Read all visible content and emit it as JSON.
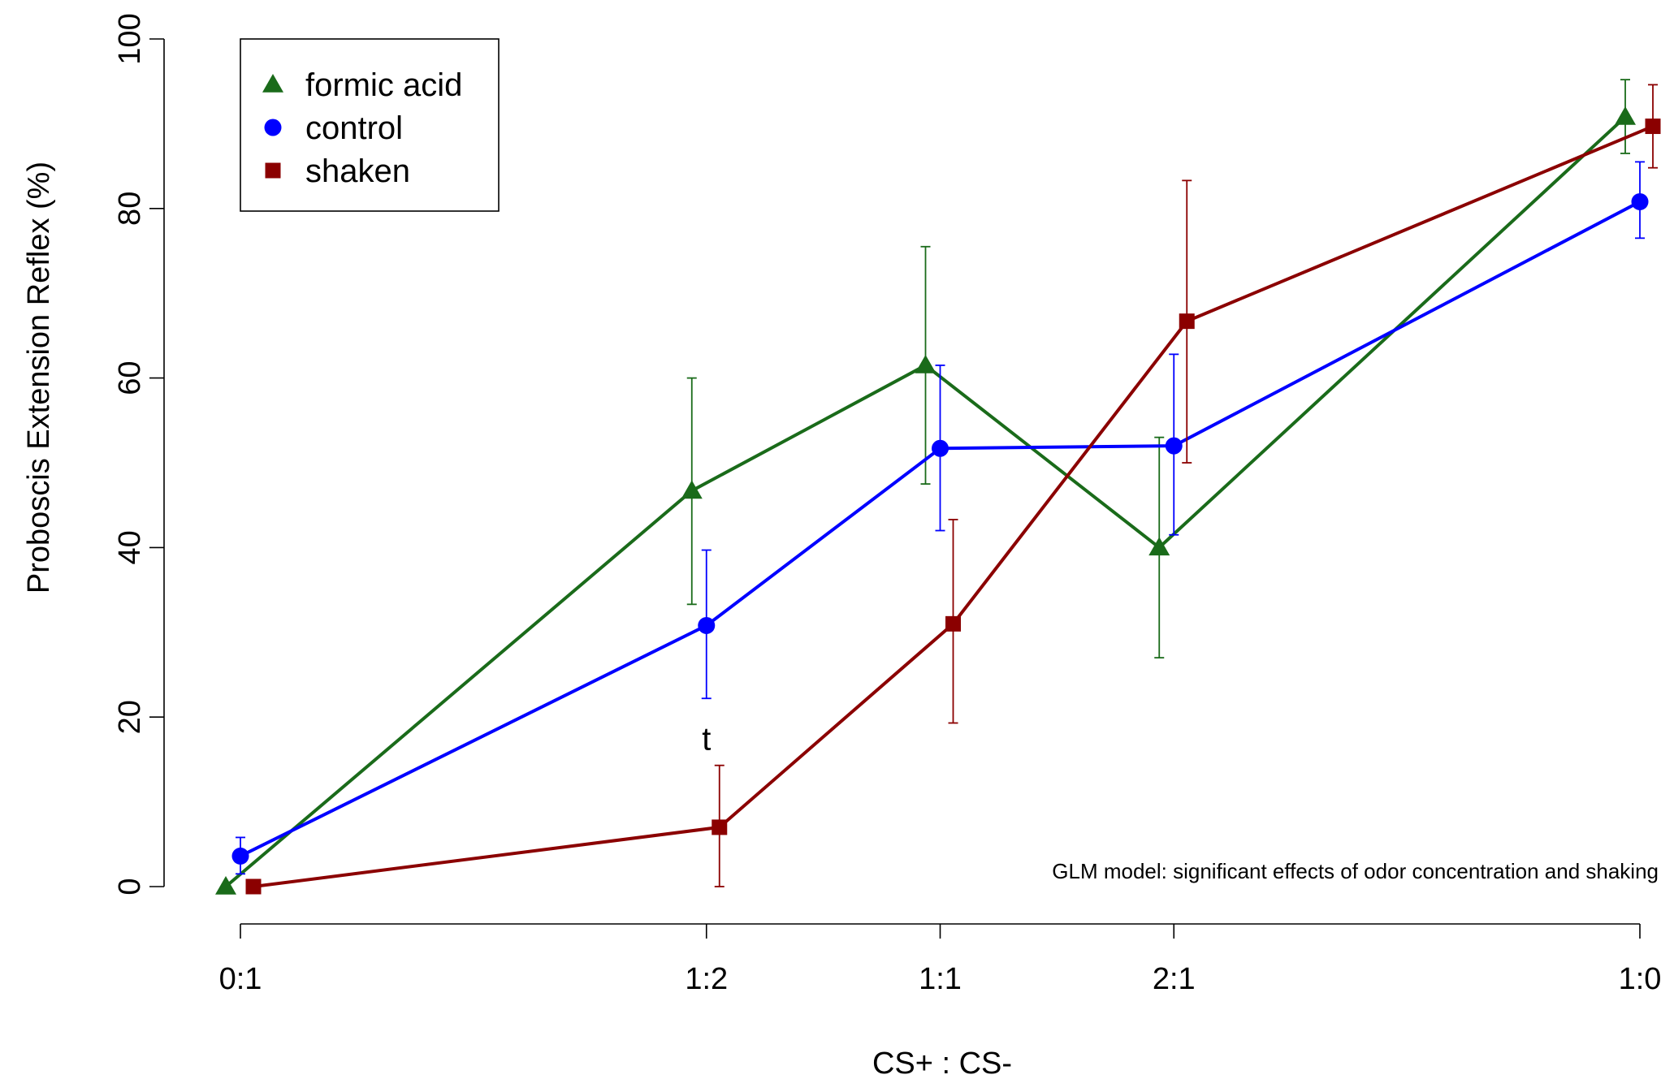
{
  "chart_data": {
    "type": "line",
    "title": "",
    "xlabel": "CS+ : CS-",
    "ylabel": "Proboscis Extension Reflex (%)",
    "ylim": [
      0,
      100
    ],
    "yticks": [
      0,
      20,
      40,
      60,
      80,
      100
    ],
    "categories": [
      "0:1",
      "1:2",
      "1:1",
      "2:1",
      "1:0"
    ],
    "x_positions": [
      0,
      0.333,
      0.5,
      0.667,
      1
    ],
    "grid": false,
    "legend_position": "top-left",
    "series": [
      {
        "name": "formic acid",
        "color": "#1a6b1a",
        "marker": "triangle",
        "values": [
          0,
          46.7,
          61.5,
          40,
          90.8
        ],
        "err_low": [
          0,
          33.3,
          47.5,
          27,
          86.5
        ],
        "err_high": [
          0,
          60,
          75.5,
          53,
          95.2
        ]
      },
      {
        "name": "control",
        "color": "#0000ff",
        "marker": "circle",
        "values": [
          3.6,
          30.8,
          51.7,
          52,
          80.8
        ],
        "err_low": [
          1.5,
          22.2,
          42,
          41.5,
          76.5
        ],
        "err_high": [
          5.8,
          39.7,
          61.5,
          62.8,
          85.5
        ]
      },
      {
        "name": "shaken",
        "color": "#8b0000",
        "marker": "square",
        "values": [
          0,
          7,
          31,
          66.7,
          89.7
        ],
        "err_low": [
          0,
          0,
          19.3,
          50,
          84.8
        ],
        "err_high": [
          0,
          14.3,
          43.3,
          83.3,
          94.6
        ]
      }
    ],
    "annotations": {
      "significance_label": "t",
      "significance_category": "1:2",
      "significance_y": 17.5,
      "note": "GLM model: significant effects of odor concentration and shaking"
    }
  }
}
